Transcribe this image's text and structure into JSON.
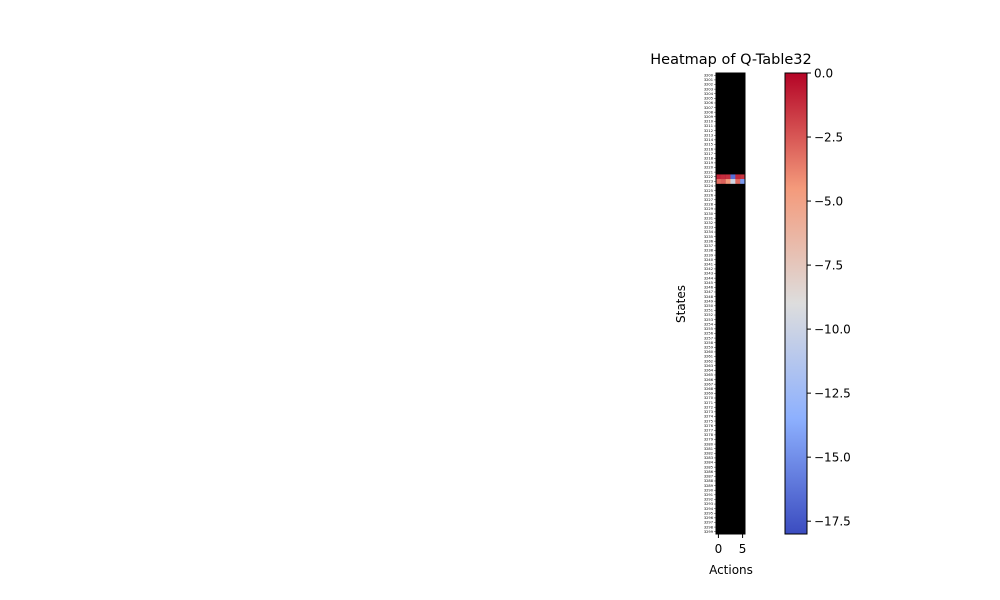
{
  "chart_data": {
    "type": "heatmap",
    "title": "Heatmap of Q-Table32",
    "xlabel": "Actions",
    "ylabel": "States",
    "n_actions": 6,
    "x_tick_labels": [
      "0",
      "5"
    ],
    "x_tick_positions": [
      0,
      5
    ],
    "state_start": 3200,
    "n_states": 100,
    "default_value": null,
    "default_color": "#000000",
    "highlight_rows": [
      {
        "state": 3222,
        "values": [
          -1.0,
          -1.2,
          -1.3,
          -16.5,
          -1.1,
          -1.4
        ]
      },
      {
        "state": 3223,
        "values": [
          -3.2,
          -2.8,
          -4.5,
          -9.8,
          -3.0,
          -14.5
        ]
      }
    ],
    "colorbar": {
      "cmap": "coolwarm",
      "vmin": -18.0,
      "vmax": 0.0,
      "ticks": [
        0.0,
        -2.5,
        -5.0,
        -7.5,
        -10.0,
        -12.5,
        -15.0,
        -17.5
      ],
      "tick_labels": [
        "0.0",
        "−2.5",
        "−5.0",
        "−7.5",
        "−10.0",
        "−12.5",
        "−15.0",
        "−17.5"
      ]
    }
  }
}
